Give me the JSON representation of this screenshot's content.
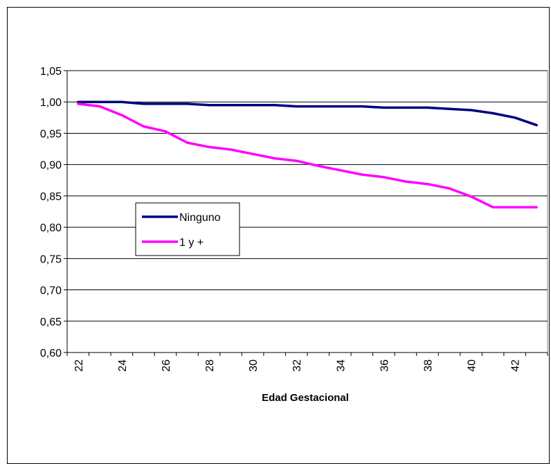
{
  "chart_data": {
    "type": "line",
    "title": "",
    "xlabel": "Edad Gestacional",
    "ylabel": "",
    "ylim": [
      0.6,
      1.05
    ],
    "y_ticks": [
      "0,60",
      "0,65",
      "0,70",
      "0,75",
      "0,80",
      "0,85",
      "0,90",
      "0,95",
      "1,00",
      "1,05"
    ],
    "x": [
      22,
      23,
      24,
      25,
      26,
      27,
      28,
      29,
      30,
      31,
      32,
      33,
      34,
      35,
      36,
      37,
      38,
      39,
      40,
      41,
      42,
      43
    ],
    "x_ticks": [
      "22",
      "24",
      "26",
      "28",
      "30",
      "32",
      "34",
      "36",
      "38",
      "40",
      "42"
    ],
    "grid": "horizontal",
    "legend_position": "center-left",
    "series": [
      {
        "name": "Ninguno",
        "color": "#000080",
        "values": [
          1.0,
          1.0,
          1.0,
          0.997,
          0.997,
          0.997,
          0.995,
          0.995,
          0.995,
          0.995,
          0.993,
          0.993,
          0.993,
          0.993,
          0.991,
          0.991,
          0.991,
          0.989,
          0.987,
          0.982,
          0.975,
          0.963
        ]
      },
      {
        "name": "1 y +",
        "color": "#FF00FF",
        "values": [
          0.997,
          0.993,
          0.979,
          0.961,
          0.953,
          0.935,
          0.928,
          0.924,
          0.917,
          0.91,
          0.906,
          0.898,
          0.891,
          0.884,
          0.88,
          0.873,
          0.869,
          0.862,
          0.849,
          0.832,
          0.832,
          0.832
        ]
      }
    ]
  }
}
